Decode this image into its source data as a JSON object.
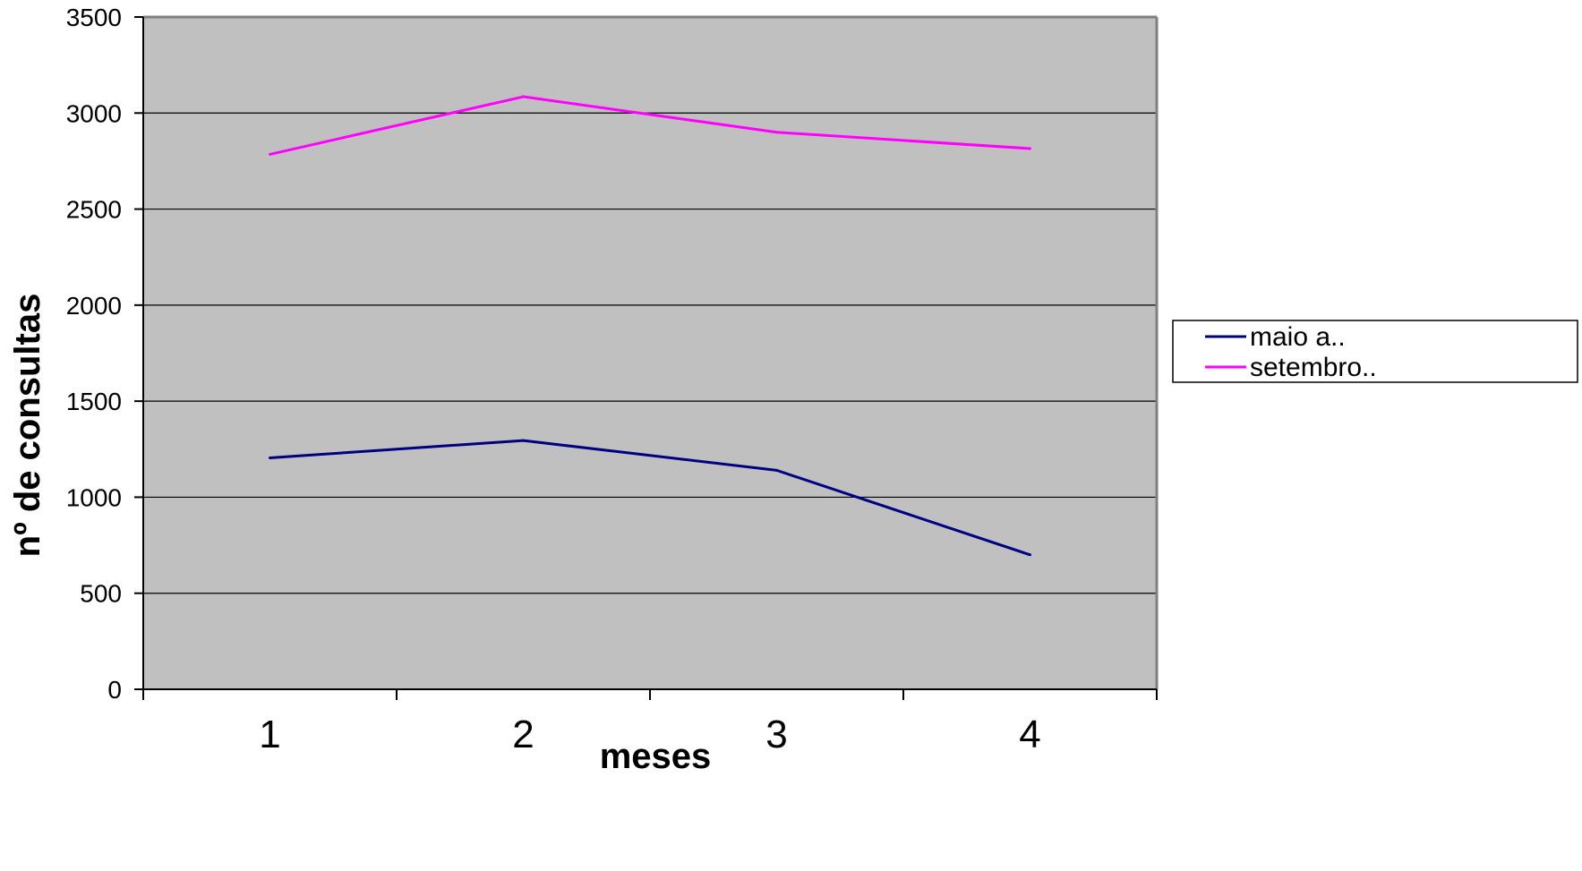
{
  "chart_data": {
    "type": "line",
    "title": "",
    "xlabel": "meses",
    "ylabel": "nº de consultas",
    "categories": [
      "1",
      "2",
      "3",
      "4"
    ],
    "ylim": [
      0,
      3500
    ],
    "yticks": [
      "0",
      "500",
      "1000",
      "1500",
      "2000",
      "2500",
      "3000",
      "3500"
    ],
    "grid": true,
    "legend_position": "right",
    "plot_background": "#c0c0c0",
    "series": [
      {
        "name": "maio a..",
        "color": "#000080",
        "values": [
          1205,
          1295,
          1140,
          700
        ]
      },
      {
        "name": "setembro..",
        "color": "#ff00ff",
        "values": [
          2785,
          3085,
          2900,
          2815
        ]
      }
    ]
  }
}
